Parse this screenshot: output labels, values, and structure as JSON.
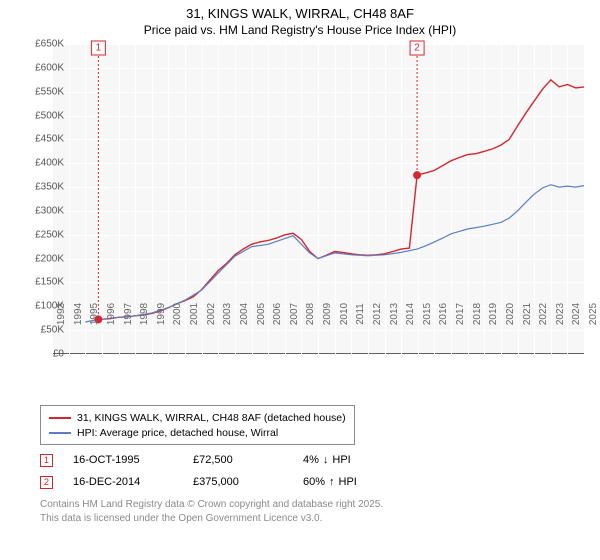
{
  "title": "31, KINGS WALK, WIRRAL, CH48 8AF",
  "subtitle": "Price paid vs. HM Land Registry's House Price Index (HPI)",
  "chart": {
    "type": "line",
    "background_color": "#f7f7f8",
    "grid_color": "#ffffff",
    "axis_color": "#606060",
    "ylim": [
      0,
      650
    ],
    "ytick_step": 50,
    "ytick_prefix": "£",
    "ytick_suffix": "K",
    "font_size_ticks": 10,
    "x_years": [
      1993,
      1994,
      1995,
      1996,
      1997,
      1998,
      1999,
      2000,
      2001,
      2002,
      2003,
      2004,
      2005,
      2006,
      2007,
      2008,
      2009,
      2010,
      2011,
      2012,
      2013,
      2014,
      2015,
      2016,
      2017,
      2018,
      2019,
      2020,
      2021,
      2022,
      2023,
      2024,
      2025
    ],
    "series": [
      {
        "name": "price_paid",
        "label": "31, KINGS WALK, WIRRAL, CH48 8AF (detached house)",
        "color": "#d4262f",
        "line_width": 1.4,
        "points": [
          [
            1995.79,
            72.5
          ],
          [
            1996,
            73
          ],
          [
            1996.5,
            74
          ],
          [
            1997,
            77
          ],
          [
            1997.5,
            78
          ],
          [
            1998,
            80
          ],
          [
            1998.5,
            82
          ],
          [
            1999,
            85
          ],
          [
            1999.5,
            90
          ],
          [
            2000,
            97
          ],
          [
            2000.5,
            105
          ],
          [
            2001,
            112
          ],
          [
            2001.5,
            120
          ],
          [
            2002,
            135
          ],
          [
            2002.5,
            155
          ],
          [
            2003,
            175
          ],
          [
            2003.5,
            190
          ],
          [
            2004,
            208
          ],
          [
            2004.5,
            220
          ],
          [
            2005,
            230
          ],
          [
            2005.5,
            235
          ],
          [
            2006,
            238
          ],
          [
            2006.5,
            243
          ],
          [
            2007,
            250
          ],
          [
            2007.5,
            253
          ],
          [
            2008,
            240
          ],
          [
            2008.5,
            215
          ],
          [
            2009,
            200
          ],
          [
            2009.5,
            207
          ],
          [
            2010,
            215
          ],
          [
            2010.5,
            213
          ],
          [
            2011,
            210
          ],
          [
            2011.5,
            208
          ],
          [
            2012,
            207
          ],
          [
            2012.5,
            208
          ],
          [
            2013,
            210
          ],
          [
            2013.5,
            215
          ],
          [
            2014,
            220
          ],
          [
            2014.5,
            222
          ],
          [
            2014.96,
            375
          ],
          [
            2015.5,
            380
          ],
          [
            2016,
            385
          ],
          [
            2016.5,
            395
          ],
          [
            2017,
            405
          ],
          [
            2017.5,
            412
          ],
          [
            2018,
            418
          ],
          [
            2018.5,
            420
          ],
          [
            2019,
            425
          ],
          [
            2019.5,
            430
          ],
          [
            2020,
            438
          ],
          [
            2020.5,
            450
          ],
          [
            2021,
            478
          ],
          [
            2021.5,
            505
          ],
          [
            2022,
            530
          ],
          [
            2022.5,
            555
          ],
          [
            2023,
            575
          ],
          [
            2023.5,
            560
          ],
          [
            2024,
            565
          ],
          [
            2024.5,
            558
          ],
          [
            2025,
            560
          ]
        ]
      },
      {
        "name": "hpi",
        "label": "HPI: Average price, detached house, Wirral",
        "color": "#5b7fc6",
        "line_width": 1.2,
        "points": [
          [
            1995,
            67
          ],
          [
            1995.79,
            72.5
          ],
          [
            1996,
            73
          ],
          [
            1997,
            77
          ],
          [
            1998,
            80
          ],
          [
            1999,
            86
          ],
          [
            2000,
            97
          ],
          [
            2001,
            113
          ],
          [
            2002,
            134
          ],
          [
            2003,
            170
          ],
          [
            2004,
            205
          ],
          [
            2005,
            225
          ],
          [
            2006,
            230
          ],
          [
            2007,
            242
          ],
          [
            2007.5,
            248
          ],
          [
            2008,
            230
          ],
          [
            2008.5,
            212
          ],
          [
            2009,
            200
          ],
          [
            2010,
            212
          ],
          [
            2011,
            208
          ],
          [
            2012,
            206
          ],
          [
            2013,
            208
          ],
          [
            2014,
            213
          ],
          [
            2014.96,
            220
          ],
          [
            2015.5,
            227
          ],
          [
            2016,
            235
          ],
          [
            2016.5,
            243
          ],
          [
            2017,
            252
          ],
          [
            2017.5,
            257
          ],
          [
            2018,
            262
          ],
          [
            2018.5,
            265
          ],
          [
            2019,
            268
          ],
          [
            2019.5,
            272
          ],
          [
            2020,
            276
          ],
          [
            2020.5,
            285
          ],
          [
            2021,
            300
          ],
          [
            2021.5,
            318
          ],
          [
            2022,
            335
          ],
          [
            2022.5,
            348
          ],
          [
            2023,
            355
          ],
          [
            2023.5,
            350
          ],
          [
            2024,
            352
          ],
          [
            2024.5,
            350
          ],
          [
            2025,
            353
          ]
        ]
      }
    ],
    "markers": [
      {
        "num": "1",
        "x": 1995.79,
        "y": 72.5
      },
      {
        "num": "2",
        "x": 2014.96,
        "y": 375
      }
    ]
  },
  "legend": {
    "rows": [
      {
        "color": "#d4262f",
        "label": "31, KINGS WALK, WIRRAL, CH48 8AF (detached house)"
      },
      {
        "color": "#5b7fc6",
        "label": "HPI: Average price, detached house, Wirral"
      }
    ]
  },
  "sales": [
    {
      "num": "1",
      "date": "16-OCT-1995",
      "price": "£72,500",
      "pct": "4%",
      "dir": "↓",
      "suffix": "HPI"
    },
    {
      "num": "2",
      "date": "16-DEC-2014",
      "price": "£375,000",
      "pct": "60%",
      "dir": "↑",
      "suffix": "HPI"
    }
  ],
  "footer_line1": "Contains HM Land Registry data © Crown copyright and database right 2025.",
  "footer_line2": "This data is licensed under the Open Government Licence v3.0."
}
